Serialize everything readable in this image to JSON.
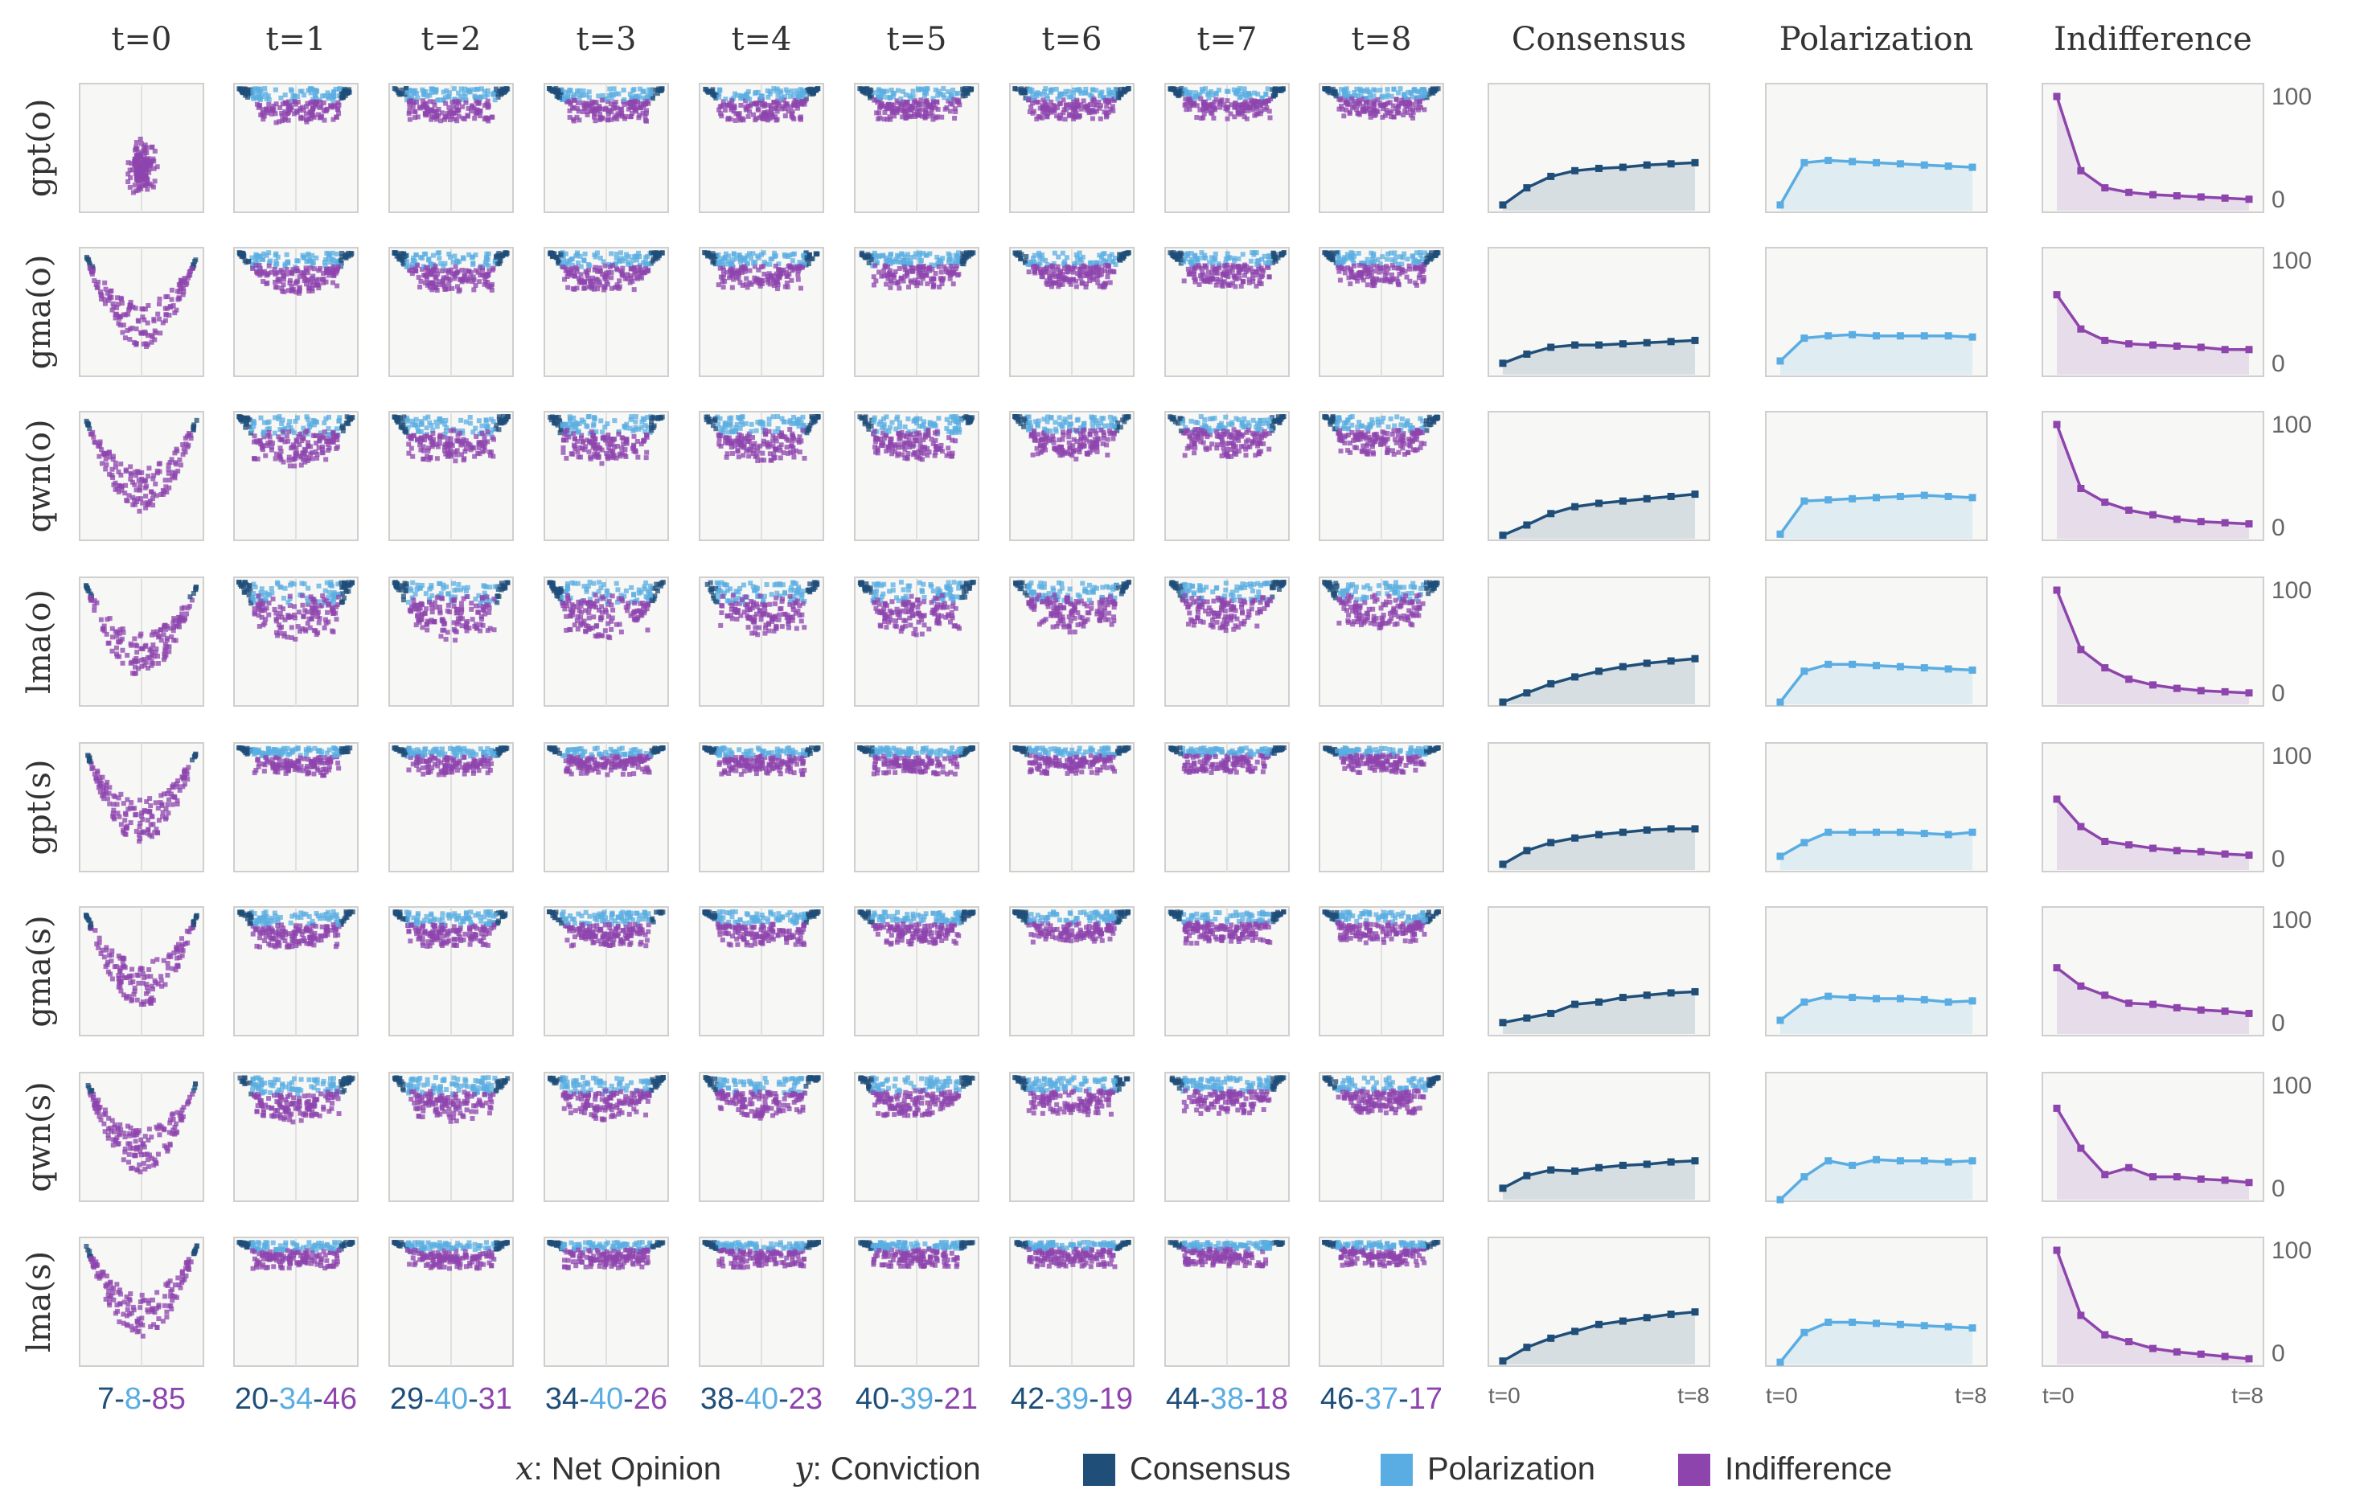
{
  "colors": {
    "consensus": "#1f4e79",
    "polarization": "#5aade2",
    "indifference": "#8e44ad",
    "panel_bg": "#f7f7f5",
    "panel_border": "#cfcfcf",
    "axis_text": "#666666"
  },
  "timesteps": [
    "t=0",
    "t=1",
    "t=2",
    "t=3",
    "t=4",
    "t=5",
    "t=6",
    "t=7",
    "t=8"
  ],
  "metric_titles": [
    "Consensus",
    "Polarization",
    "Indifference"
  ],
  "rows": [
    "gpt(o)",
    "gma(o)",
    "qwn(o)",
    "lma(o)",
    "gpt(s)",
    "gma(s)",
    "qwn(s)",
    "lma(s)"
  ],
  "line_axis": {
    "y_ticks": [
      "100",
      "0"
    ],
    "x_start": "t=0",
    "x_end": "t=8"
  },
  "bottom_counts": [
    {
      "c": "7",
      "p": "8",
      "i": "85"
    },
    {
      "c": "20",
      "p": "34",
      "i": "46"
    },
    {
      "c": "29",
      "p": "40",
      "i": "31"
    },
    {
      "c": "34",
      "p": "40",
      "i": "26"
    },
    {
      "c": "38",
      "p": "40",
      "i": "23"
    },
    {
      "c": "40",
      "p": "39",
      "i": "21"
    },
    {
      "c": "42",
      "p": "39",
      "i": "19"
    },
    {
      "c": "44",
      "p": "38",
      "i": "18"
    },
    {
      "c": "46",
      "p": "37",
      "i": "17"
    }
  ],
  "legend": {
    "x_var": "x",
    "x_text": ": Net Opinion",
    "y_var": "y",
    "y_text": ": Conviction",
    "items": [
      "Consensus",
      "Polarization",
      "Indifference"
    ]
  },
  "chart_data": {
    "type": "line",
    "title": "",
    "x": [
      "t=0",
      "t=1",
      "t=2",
      "t=3",
      "t=4",
      "t=5",
      "t=6",
      "t=7",
      "t=8"
    ],
    "ylim": [
      0,
      100
    ],
    "panels": [
      {
        "row": "gpt(o)",
        "consensus": [
          5,
          20,
          30,
          35,
          37,
          38,
          40,
          41,
          42
        ],
        "polarization": [
          5,
          42,
          44,
          43,
          42,
          41,
          40,
          39,
          38
        ],
        "indifference": [
          100,
          35,
          20,
          16,
          14,
          13,
          12,
          11,
          10
        ]
      },
      {
        "row": "gma(o)",
        "consensus": [
          10,
          18,
          24,
          26,
          26,
          27,
          28,
          29,
          30
        ],
        "polarization": [
          12,
          32,
          34,
          35,
          34,
          34,
          34,
          34,
          33
        ],
        "indifference": [
          70,
          40,
          30,
          27,
          26,
          25,
          24,
          22,
          22
        ]
      },
      {
        "row": "qwn(o)",
        "consensus": [
          3,
          12,
          22,
          28,
          31,
          33,
          35,
          37,
          39
        ],
        "polarization": [
          4,
          33,
          34,
          35,
          36,
          37,
          38,
          37,
          36
        ],
        "indifference": [
          100,
          44,
          32,
          25,
          21,
          17,
          15,
          14,
          13
        ]
      },
      {
        "row": "lma(o)",
        "consensus": [
          2,
          10,
          18,
          24,
          29,
          33,
          36,
          38,
          40
        ],
        "polarization": [
          2,
          29,
          35,
          35,
          34,
          33,
          32,
          31,
          30
        ],
        "indifference": [
          100,
          48,
          32,
          22,
          17,
          14,
          12,
          11,
          10
        ]
      },
      {
        "row": "gpt(s)",
        "consensus": [
          5,
          17,
          24,
          28,
          31,
          33,
          35,
          36,
          36
        ],
        "polarization": [
          12,
          24,
          33,
          33,
          33,
          33,
          32,
          31,
          33
        ],
        "indifference": [
          62,
          38,
          25,
          22,
          19,
          17,
          16,
          14,
          13
        ]
      },
      {
        "row": "gma(s)",
        "consensus": [
          10,
          14,
          18,
          26,
          28,
          32,
          34,
          36,
          37
        ],
        "polarization": [
          12,
          28,
          33,
          32,
          31,
          31,
          30,
          28,
          29
        ],
        "indifference": [
          58,
          42,
          34,
          27,
          26,
          23,
          21,
          20,
          18
        ]
      },
      {
        "row": "qwn(s)",
        "consensus": [
          10,
          21,
          26,
          25,
          28,
          30,
          31,
          33,
          34
        ],
        "polarization": [
          0,
          20,
          34,
          30,
          35,
          34,
          34,
          33,
          34
        ],
        "indifference": [
          80,
          45,
          22,
          28,
          20,
          20,
          18,
          17,
          15
        ]
      },
      {
        "row": "lma(s)",
        "consensus": [
          3,
          15,
          23,
          29,
          35,
          38,
          41,
          44,
          46
        ],
        "polarization": [
          2,
          28,
          37,
          37,
          36,
          35,
          34,
          33,
          32
        ],
        "indifference": [
          100,
          43,
          26,
          20,
          14,
          11,
          9,
          7,
          5
        ]
      }
    ]
  }
}
